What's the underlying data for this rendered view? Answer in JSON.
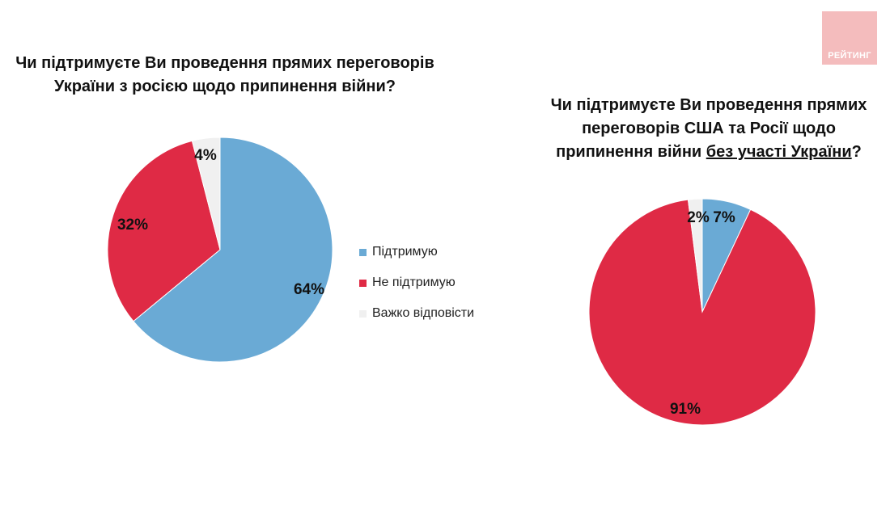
{
  "logo": {
    "text": "РЕЙТИНГ",
    "color": "#f4bcbd"
  },
  "legend": [
    {
      "label": "Підтримую",
      "color": "#6aaad5"
    },
    {
      "label": "Не підтримую",
      "color": "#df2a45"
    },
    {
      "label": "Важко відповісти",
      "color": "#f0f0f0"
    }
  ],
  "chart_data": [
    {
      "type": "pie",
      "title_lines": [
        "Чи підтримуєте Ви проведення прямих переговорів",
        "України з росією щодо припинення війни?"
      ],
      "categories": [
        "Підтримую",
        "Не підтримую",
        "Важко відповісти"
      ],
      "values": [
        64,
        32,
        4
      ],
      "labels": [
        "64%",
        "32%",
        "4%"
      ],
      "colors": [
        "#6aaad5",
        "#df2a45",
        "#f0f0f0"
      ],
      "legend": "right"
    },
    {
      "type": "pie",
      "title_lines": [
        "Чи підтримуєте Ви проведення прямих",
        "переговорів США та Росії щодо",
        "припинення війни ",
        "без участі України",
        "?"
      ],
      "categories": [
        "Підтримую",
        "Не підтримую",
        "Важко відповісти"
      ],
      "values": [
        7,
        91,
        2
      ],
      "labels": [
        "7%",
        "91%",
        "2%"
      ],
      "colors": [
        "#6aaad5",
        "#df2a45",
        "#f0f0f0"
      ],
      "legend": "none"
    }
  ]
}
